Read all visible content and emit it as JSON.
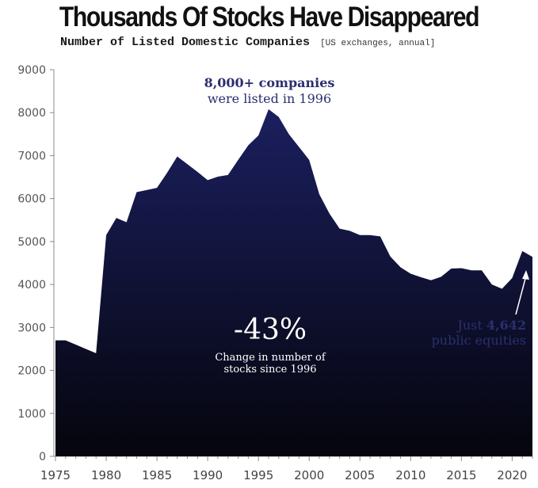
{
  "header": {
    "title": "Thousands Of Stocks Have Disappeared",
    "subtitle": "Number of Listed Domestic Companies",
    "subtitle_note": "[US exchanges, annual]"
  },
  "annotations": {
    "peak_line1": "8,000+ companies",
    "peak_line2": "were listed in 1996",
    "change_value": "-43%",
    "change_line1": "Change in number of",
    "change_line2": "stocks since 1996",
    "latest_prefix": "Just",
    "latest_value": "4,642",
    "latest_line2": "public equities"
  },
  "colors": {
    "area_top": "#1b1f5e",
    "area_bottom": "#05050c",
    "title": "#111111"
  },
  "chart_data": {
    "type": "area",
    "title": "Thousands Of Stocks Have Disappeared",
    "subtitle": "Number of Listed Domestic Companies [US exchanges, annual]",
    "xlabel": "",
    "ylabel": "",
    "xlim": [
      1975,
      2022
    ],
    "ylim": [
      0,
      9000
    ],
    "x_ticks": [
      1975,
      1980,
      1985,
      1990,
      1995,
      2000,
      2005,
      2010,
      2015,
      2020
    ],
    "y_ticks": [
      0,
      1000,
      2000,
      3000,
      4000,
      5000,
      6000,
      7000,
      8000,
      9000
    ],
    "series": [
      {
        "name": "Listed domestic companies",
        "x": [
          1975,
          1976,
          1977,
          1978,
          1979,
          1980,
          1981,
          1982,
          1983,
          1984,
          1985,
          1986,
          1987,
          1988,
          1989,
          1990,
          1991,
          1992,
          1993,
          1994,
          1995,
          1996,
          1997,
          1998,
          1999,
          2000,
          2001,
          2002,
          2003,
          2004,
          2005,
          2006,
          2007,
          2008,
          2009,
          2010,
          2011,
          2012,
          2013,
          2014,
          2015,
          2016,
          2017,
          2018,
          2019,
          2020,
          2021,
          2022
        ],
        "values": [
          2700,
          2700,
          2600,
          2500,
          2400,
          5150,
          5550,
          5450,
          6150,
          6200,
          6250,
          6600,
          6980,
          6800,
          6620,
          6430,
          6510,
          6550,
          6900,
          7240,
          7470,
          8080,
          7900,
          7500,
          7200,
          6900,
          6100,
          5650,
          5300,
          5250,
          5150,
          5150,
          5120,
          4650,
          4400,
          4250,
          4170,
          4100,
          4180,
          4370,
          4380,
          4330,
          4330,
          4000,
          3900,
          4150,
          4780,
          4642
        ]
      }
    ]
  }
}
